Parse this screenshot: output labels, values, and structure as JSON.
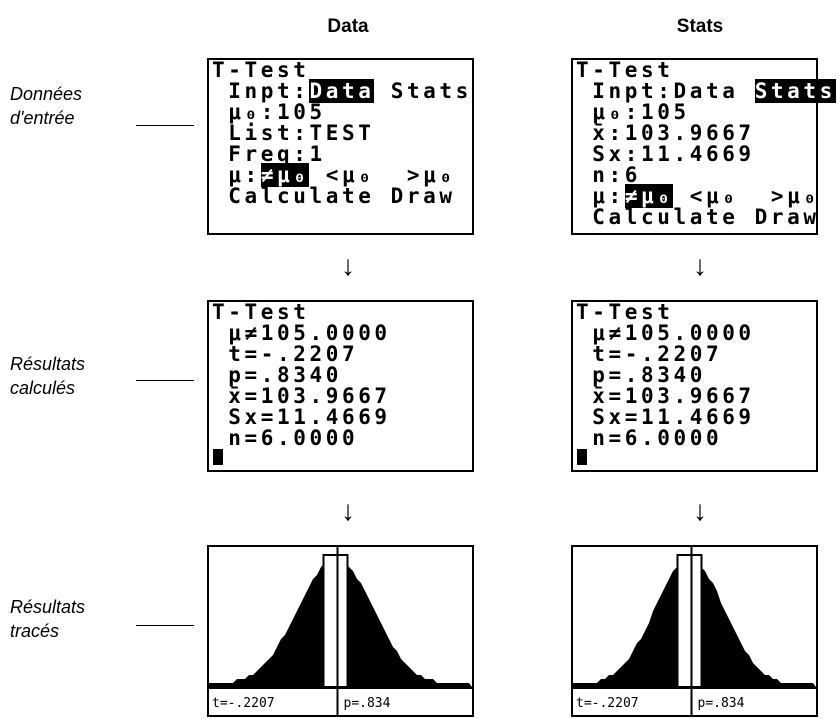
{
  "column_headers": [
    "Data",
    "Stats"
  ],
  "rows": [
    {
      "label": [
        "Données",
        "d'entrée"
      ],
      "screens": [
        {
          "lines": [
            "T-Test",
            {
              "parts": [
                {
                  "text": " Inpt:"
                },
                {
                  "text": "Data",
                  "inverse": true
                },
                {
                  "text": " Stats"
                }
              ]
            },
            " μ₀:105",
            " List:TEST",
            " Freq:1",
            {
              "parts": [
                {
                  "text": " μ:"
                },
                {
                  "text": "≠μ₀",
                  "inverse": true
                },
                {
                  "text": " <μ₀  >μ₀"
                }
              ]
            },
            " Calculate Draw"
          ]
        },
        {
          "lines": [
            "T-Test",
            {
              "parts": [
                {
                  "text": " Inpt:Data "
                },
                {
                  "text": "Stats",
                  "inverse": true
                }
              ]
            },
            " μ₀:105",
            " x̄:103.9667",
            " Sx:11.4669",
            " n:6",
            {
              "parts": [
                {
                  "text": " μ:"
                },
                {
                  "text": "≠μ₀",
                  "inverse": true
                },
                {
                  "text": " <μ₀  >μ₀"
                }
              ]
            },
            " Calculate Draw"
          ]
        }
      ]
    },
    {
      "label": [
        "Résultats",
        "calculés"
      ],
      "screens": [
        {
          "lines": [
            "T-Test",
            " μ≠105.0000",
            " t=-.2207",
            " p=.8340",
            " x̄=103.9667",
            " Sx=11.4669",
            " n=6.0000"
          ]
        },
        {
          "lines": [
            "T-Test",
            " μ≠105.0000",
            " t=-.2207",
            " p=.8340",
            " x̄=103.9667",
            " Sx=11.4669",
            " n=6.0000"
          ]
        }
      ]
    },
    {
      "label": [
        "Résultats",
        "tracés"
      ],
      "screens": [
        {
          "readout": [
            "t=-.2207",
            "p=.834"
          ]
        },
        {
          "readout": [
            "t=-.2207",
            "p=.834"
          ]
        }
      ]
    }
  ]
}
